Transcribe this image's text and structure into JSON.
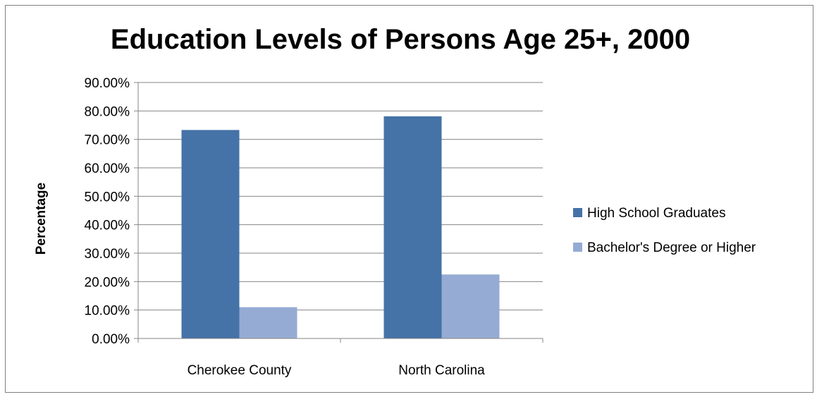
{
  "chart_data": {
    "type": "bar",
    "title": "Education Levels of Persons Age 25+, 2000",
    "xlabel": "",
    "ylabel": "Percentage",
    "categories": [
      "Cherokee County",
      "North Carolina"
    ],
    "series": [
      {
        "name": "High School Graduates",
        "values": [
          73.3,
          78.1
        ],
        "color": "#4572a7"
      },
      {
        "name": "Bachelor's Degree or Higher",
        "values": [
          11.0,
          22.5
        ],
        "color": "#95abd3"
      }
    ],
    "ylim": [
      0,
      90
    ],
    "y_ticks": [
      0,
      10,
      20,
      30,
      40,
      50,
      60,
      70,
      80,
      90
    ],
    "y_tick_labels": [
      "0.00%",
      "10.00%",
      "20.00%",
      "30.00%",
      "40.00%",
      "50.00%",
      "60.00%",
      "70.00%",
      "80.00%",
      "90.00%"
    ],
    "grid": true,
    "legend_position": "right",
    "axis_color": "#868686",
    "grid_color": "#868686"
  }
}
